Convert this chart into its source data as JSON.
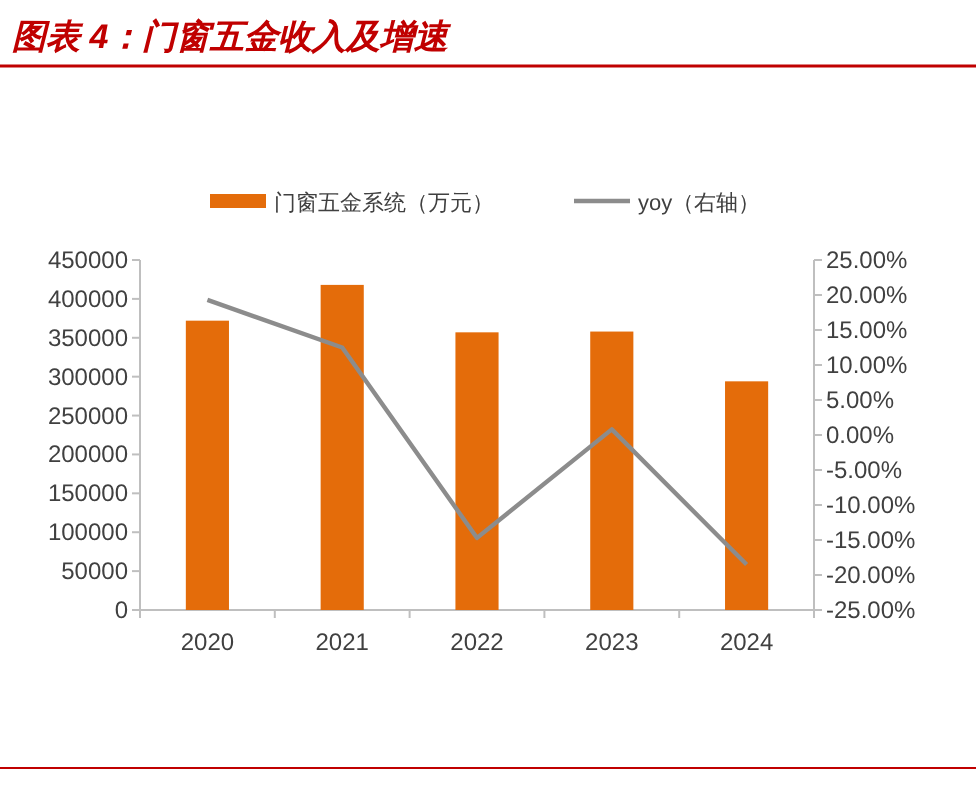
{
  "chart_data": {
    "type": "bar",
    "title": "图表 4：门窗五金收入及增速",
    "categories": [
      "2020",
      "2021",
      "2022",
      "2023",
      "2024"
    ],
    "series": [
      {
        "name": "门窗五金系统（万元）",
        "color": "#e46c0a",
        "values": [
          372000,
          418000,
          357000,
          358000,
          294000
        ]
      },
      {
        "name": "yoy（右轴）",
        "type": "line",
        "axis": "y2",
        "color": "#8c8c8c",
        "values": [
          19.3,
          12.5,
          -14.7,
          0.8,
          -18.5
        ]
      }
    ],
    "ylim": [
      0,
      450000
    ],
    "yticks": [
      0,
      50000,
      100000,
      150000,
      200000,
      250000,
      300000,
      350000,
      400000,
      450000
    ],
    "y2lim": [
      -25,
      25
    ],
    "y2ticks": [
      {
        "value": -25,
        "label": "-25.00%"
      },
      {
        "value": -20,
        "label": "-20.00%"
      },
      {
        "value": -15,
        "label": "-15.00%"
      },
      {
        "value": -10,
        "label": "-10.00%"
      },
      {
        "value": -5,
        "label": "-5.00%"
      },
      {
        "value": 0,
        "label": "0.00%"
      },
      {
        "value": 5,
        "label": "5.00%"
      },
      {
        "value": 10,
        "label": "10.00%"
      },
      {
        "value": 15,
        "label": "15.00%"
      },
      {
        "value": 20,
        "label": "20.00%"
      },
      {
        "value": 25,
        "label": "25.00%"
      }
    ],
    "legend": "top"
  }
}
